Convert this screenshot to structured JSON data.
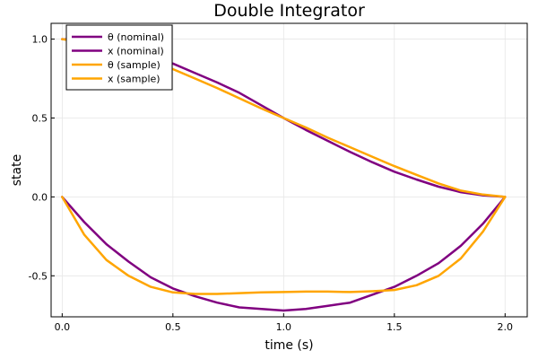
{
  "chart_data": {
    "type": "line",
    "title": "Double Integrator",
    "xlabel": "time (s)",
    "ylabel": "state",
    "xlim": [
      -0.05,
      2.1
    ],
    "ylim": [
      -0.76,
      1.1
    ],
    "x_ticks": [
      0.0,
      0.5,
      1.0,
      1.5,
      2.0
    ],
    "x_tick_labels": [
      "0.0",
      "0.5",
      "1.0",
      "1.5",
      "2.0"
    ],
    "y_ticks": [
      -0.5,
      0.0,
      0.5,
      1.0
    ],
    "y_tick_labels": [
      "-0.5",
      "0.0",
      "0.5",
      "1.0"
    ],
    "grid": true,
    "legend_position": "top-left",
    "series": [
      {
        "name": "θ (nominal)",
        "color": "#800080",
        "x": [
          0.0,
          0.1,
          0.2,
          0.3,
          0.4,
          0.5,
          0.6,
          0.7,
          0.8,
          0.9,
          1.0,
          1.1,
          1.2,
          1.3,
          1.4,
          1.5,
          1.6,
          1.7,
          1.8,
          1.9,
          2.0
        ],
        "y": [
          1.0,
          0.99,
          0.965,
          0.925,
          0.885,
          0.845,
          0.785,
          0.725,
          0.66,
          0.58,
          0.5,
          0.425,
          0.355,
          0.285,
          0.22,
          0.16,
          0.11,
          0.065,
          0.03,
          0.01,
          0.0
        ]
      },
      {
        "name": "x (nominal)",
        "color": "#800080",
        "x": [
          0.0,
          0.1,
          0.2,
          0.3,
          0.4,
          0.5,
          0.6,
          0.7,
          0.8,
          0.9,
          1.0,
          1.1,
          1.2,
          1.3,
          1.4,
          1.5,
          1.6,
          1.7,
          1.8,
          1.9,
          2.0
        ],
        "y": [
          0.0,
          -0.16,
          -0.3,
          -0.41,
          -0.51,
          -0.58,
          -0.63,
          -0.67,
          -0.7,
          -0.71,
          -0.72,
          -0.71,
          -0.69,
          -0.67,
          -0.62,
          -0.57,
          -0.5,
          -0.42,
          -0.31,
          -0.17,
          0.0
        ]
      },
      {
        "name": "θ (sample)",
        "color": "#ffa500",
        "x": [
          0.0,
          0.1,
          0.2,
          0.3,
          0.4,
          0.5,
          0.6,
          0.7,
          0.8,
          0.9,
          1.0,
          1.1,
          1.2,
          1.3,
          1.4,
          1.5,
          1.6,
          1.7,
          1.8,
          1.9,
          2.0
        ],
        "y": [
          1.0,
          0.98,
          0.955,
          0.915,
          0.87,
          0.81,
          0.75,
          0.69,
          0.625,
          0.56,
          0.5,
          0.44,
          0.375,
          0.315,
          0.255,
          0.195,
          0.14,
          0.085,
          0.04,
          0.015,
          0.0
        ]
      },
      {
        "name": "x (sample)",
        "color": "#ffa500",
        "x": [
          0.0,
          0.1,
          0.2,
          0.3,
          0.4,
          0.5,
          0.6,
          0.7,
          0.8,
          0.9,
          1.0,
          1.1,
          1.2,
          1.3,
          1.4,
          1.5,
          1.6,
          1.7,
          1.8,
          1.9,
          2.0
        ],
        "y": [
          0.0,
          -0.24,
          -0.4,
          -0.5,
          -0.57,
          -0.605,
          -0.615,
          -0.615,
          -0.61,
          -0.605,
          -0.603,
          -0.6,
          -0.6,
          -0.603,
          -0.598,
          -0.59,
          -0.56,
          -0.5,
          -0.39,
          -0.22,
          0.0
        ]
      }
    ]
  }
}
